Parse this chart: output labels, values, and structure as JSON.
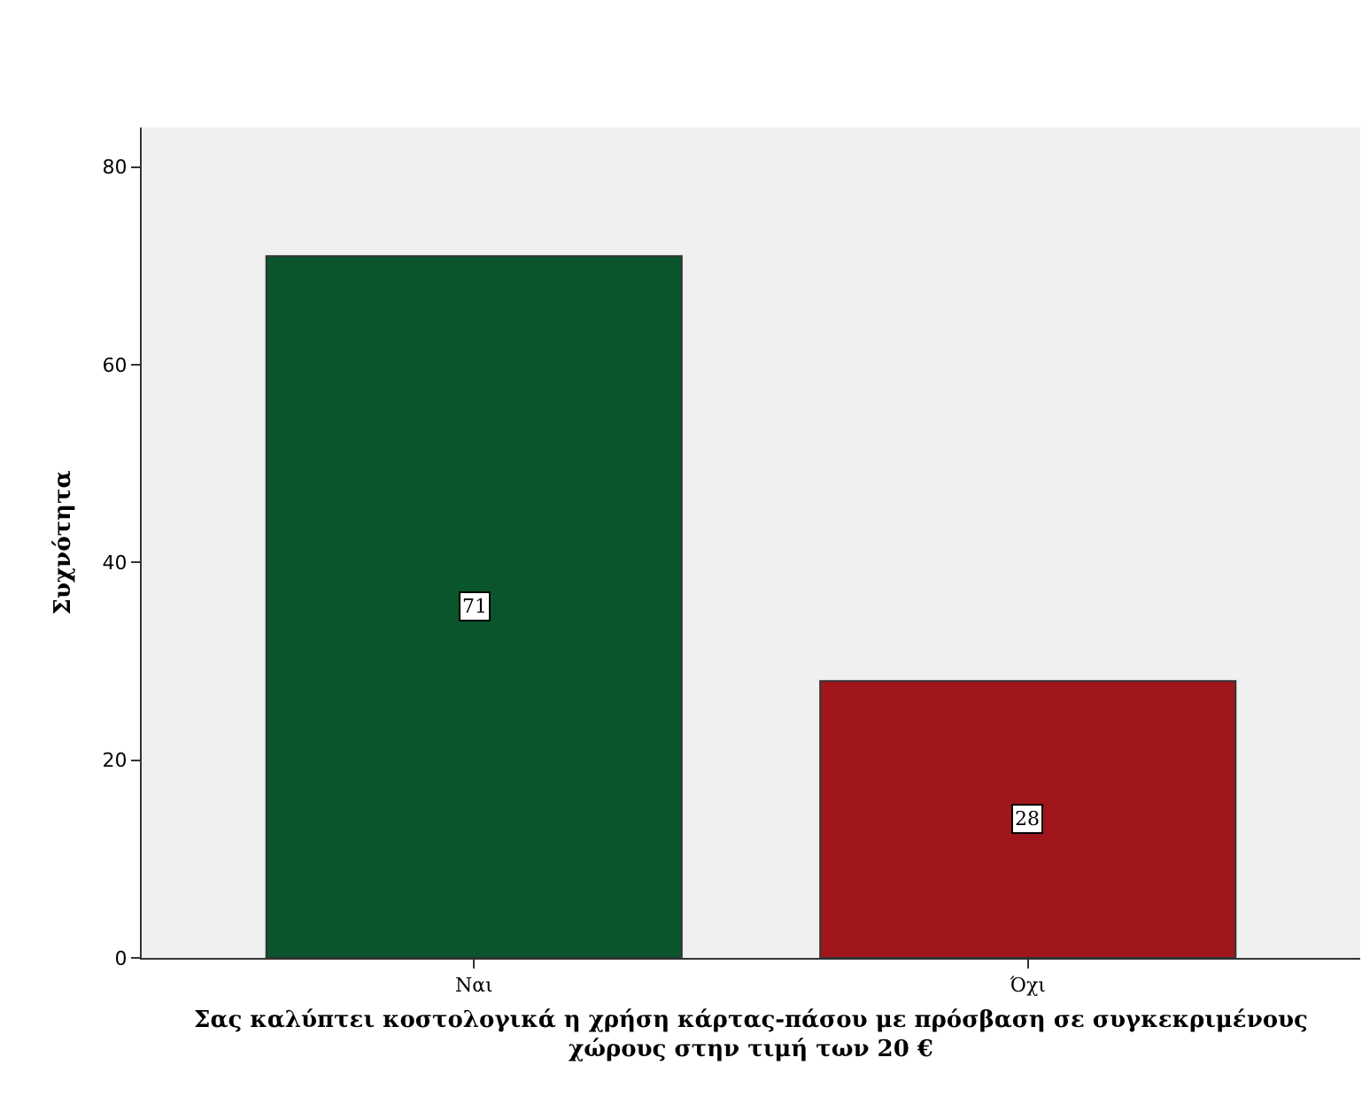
{
  "chart_data": {
    "type": "bar",
    "categories": [
      "Ναι",
      "Όχι"
    ],
    "values": [
      71,
      28
    ],
    "colors": [
      "#0b552c",
      "#a0161b"
    ],
    "ylabel": "Συχνότητα",
    "xlabel": "Σας καλύπτει κοστολογικά η χρήση κάρτας-πάσου με πρόσβαση σε συγκεκριμένους\nχώρους στην τιμή των 20 €",
    "ylim": [
      0,
      84
    ],
    "yticks": [
      0,
      20,
      40,
      60,
      80
    ],
    "data_labels": true,
    "grid": false,
    "legend": false
  }
}
